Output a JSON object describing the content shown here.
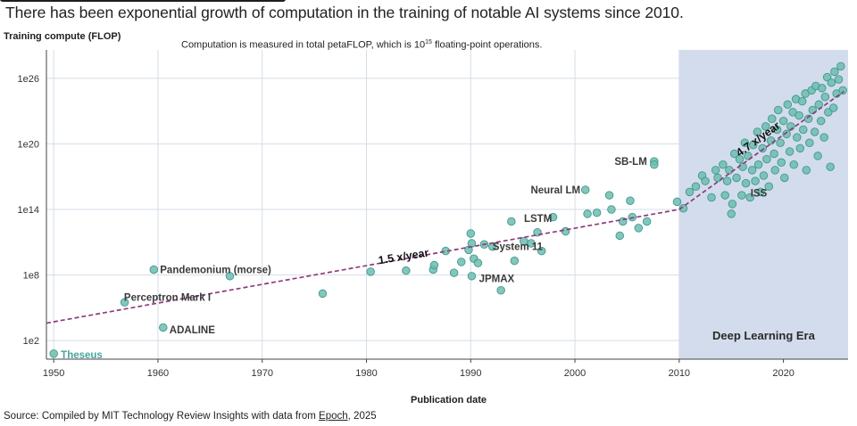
{
  "page": {
    "headline": "There has been exponential growth of computation in the training of notable AI systems since 2010.",
    "note_pre": "Computation is measured in total petaFLOP, which is 10",
    "note_sup": "15",
    "note_post": " floating-point operations.",
    "source_pre": "Source: Compiled by MIT Technology Review Insights with data from ",
    "source_link": "Epoch",
    "source_post": ", 2025"
  },
  "colors": {
    "point": "#6fbcb0",
    "point_edge": "#3f9a8e",
    "trend": "#8e3a7c",
    "era_band": "#d2dcec",
    "grid": "#d5dde8",
    "axis": "#444444"
  },
  "chart_data": {
    "type": "scatter",
    "title": "",
    "xlabel": "Publication date",
    "ylabel": "Training compute (FLOP)",
    "y_scale": "log10",
    "xlim": [
      1949.3,
      2026.2
    ],
    "ylim": [
      0.3,
      28.6
    ],
    "x_ticks": [
      1950,
      1960,
      1970,
      1980,
      1990,
      2000,
      2010,
      2020
    ],
    "y_ticks": [
      {
        "exp": 2,
        "label": "1e2"
      },
      {
        "exp": 8,
        "label": "1e8"
      },
      {
        "exp": 14,
        "label": "1e14"
      },
      {
        "exp": 20,
        "label": "1e20"
      },
      {
        "exp": 26,
        "label": "1e26"
      }
    ],
    "grid": true,
    "shaded_region": {
      "x_from": 2010,
      "label": "Deep Learning Era"
    },
    "trend_lines": [
      {
        "label": "1.5 x/year",
        "x": [
          1949.3,
          2010
        ],
        "log10_y": [
          3.6,
          14.0
        ]
      },
      {
        "label": "4.7 x/year",
        "x": [
          2010,
          2025.8
        ],
        "log10_y": [
          14.0,
          24.8
        ]
      }
    ],
    "annotations": [
      {
        "text": "Theseus",
        "x": 1950,
        "log10_y": 0.7
      },
      {
        "text": "Pandemonium (morse)",
        "x": 1959.6,
        "log10_y": 8.5
      },
      {
        "text": "Perceptron Mark I",
        "x": 1957.0,
        "log10_y": 5.4
      },
      {
        "text": "ADALINE",
        "x": 1960.5,
        "log10_y": 3.0
      },
      {
        "text": "1.5 x/year",
        "x": 1981.2,
        "log10_y": 9.0
      },
      {
        "text": "System 11",
        "x": 1991.5,
        "log10_y": 10.6
      },
      {
        "text": "JPMAX",
        "x": 1990.2,
        "log10_y": 7.7
      },
      {
        "text": "LSTM",
        "x": 1994.6,
        "log10_y": 13.2
      },
      {
        "text": "Neural LM",
        "x": 2001.2,
        "log10_y": 15.8
      },
      {
        "text": "SB-LM",
        "x": 2007.6,
        "log10_y": 18.4
      },
      {
        "text": "ISS",
        "x": 2016.5,
        "log10_y": 15.5
      },
      {
        "text": "4.7 x/year",
        "x": 2015.8,
        "log10_y": 18.8
      }
    ],
    "points": [
      {
        "x": 1950.0,
        "log10_y": 0.8
      },
      {
        "x": 1956.8,
        "log10_y": 5.5
      },
      {
        "x": 1959.6,
        "log10_y": 8.5
      },
      {
        "x": 1960.5,
        "log10_y": 3.2
      },
      {
        "x": 1966.9,
        "log10_y": 7.9
      },
      {
        "x": 1975.8,
        "log10_y": 6.3
      },
      {
        "x": 1980.4,
        "log10_y": 8.3
      },
      {
        "x": 1983.8,
        "log10_y": 8.4
      },
      {
        "x": 1986.4,
        "log10_y": 8.5
      },
      {
        "x": 1986.5,
        "log10_y": 8.9
      },
      {
        "x": 1987.6,
        "log10_y": 10.2
      },
      {
        "x": 1988.4,
        "log10_y": 8.2
      },
      {
        "x": 1989.1,
        "log10_y": 9.2
      },
      {
        "x": 1989.8,
        "log10_y": 10.3
      },
      {
        "x": 1990.0,
        "log10_y": 11.8
      },
      {
        "x": 1990.1,
        "log10_y": 10.9
      },
      {
        "x": 1990.1,
        "log10_y": 7.9
      },
      {
        "x": 1990.3,
        "log10_y": 9.5
      },
      {
        "x": 1990.7,
        "log10_y": 9.1
      },
      {
        "x": 1991.3,
        "log10_y": 10.8
      },
      {
        "x": 1992.1,
        "log10_y": 10.6
      },
      {
        "x": 1992.9,
        "log10_y": 6.6
      },
      {
        "x": 1993.9,
        "log10_y": 12.9
      },
      {
        "x": 1994.2,
        "log10_y": 9.3
      },
      {
        "x": 1995.1,
        "log10_y": 11.1
      },
      {
        "x": 1995.8,
        "log10_y": 10.9
      },
      {
        "x": 1996.4,
        "log10_y": 11.9
      },
      {
        "x": 1996.8,
        "log10_y": 10.2
      },
      {
        "x": 1997.9,
        "log10_y": 13.3
      },
      {
        "x": 1999.1,
        "log10_y": 12.0
      },
      {
        "x": 2001.0,
        "log10_y": 15.8
      },
      {
        "x": 2001.2,
        "log10_y": 13.6
      },
      {
        "x": 2002.1,
        "log10_y": 13.7
      },
      {
        "x": 2003.3,
        "log10_y": 15.3
      },
      {
        "x": 2003.5,
        "log10_y": 14.0
      },
      {
        "x": 2004.3,
        "log10_y": 11.6
      },
      {
        "x": 2004.6,
        "log10_y": 12.9
      },
      {
        "x": 2005.3,
        "log10_y": 14.8
      },
      {
        "x": 2005.5,
        "log10_y": 13.3
      },
      {
        "x": 2006.1,
        "log10_y": 12.3
      },
      {
        "x": 2006.9,
        "log10_y": 12.9
      },
      {
        "x": 2007.6,
        "log10_y": 18.4
      },
      {
        "x": 2007.6,
        "log10_y": 18.1
      },
      {
        "x": 2009.8,
        "log10_y": 14.7
      },
      {
        "x": 2010.4,
        "log10_y": 14.1
      },
      {
        "x": 2011.0,
        "log10_y": 15.6
      },
      {
        "x": 2011.6,
        "log10_y": 16.1
      },
      {
        "x": 2012.2,
        "log10_y": 17.1
      },
      {
        "x": 2012.5,
        "log10_y": 16.6
      },
      {
        "x": 2013.1,
        "log10_y": 15.1
      },
      {
        "x": 2013.5,
        "log10_y": 17.6
      },
      {
        "x": 2013.7,
        "log10_y": 16.9
      },
      {
        "x": 2014.2,
        "log10_y": 18.1
      },
      {
        "x": 2014.4,
        "log10_y": 15.3
      },
      {
        "x": 2014.6,
        "log10_y": 16.6
      },
      {
        "x": 2014.8,
        "log10_y": 17.6
      },
      {
        "x": 2015.0,
        "log10_y": 13.6
      },
      {
        "x": 2015.1,
        "log10_y": 14.5
      },
      {
        "x": 2015.3,
        "log10_y": 19.1
      },
      {
        "x": 2015.5,
        "log10_y": 16.9
      },
      {
        "x": 2015.8,
        "log10_y": 18.6
      },
      {
        "x": 2016.0,
        "log10_y": 15.3
      },
      {
        "x": 2016.1,
        "log10_y": 17.9
      },
      {
        "x": 2016.3,
        "log10_y": 20.1
      },
      {
        "x": 2016.4,
        "log10_y": 16.4
      },
      {
        "x": 2016.6,
        "log10_y": 18.9
      },
      {
        "x": 2016.8,
        "log10_y": 15.1
      },
      {
        "x": 2017.0,
        "log10_y": 17.6
      },
      {
        "x": 2017.1,
        "log10_y": 19.9
      },
      {
        "x": 2017.3,
        "log10_y": 16.6
      },
      {
        "x": 2017.5,
        "log10_y": 21.1
      },
      {
        "x": 2017.6,
        "log10_y": 18.1
      },
      {
        "x": 2017.8,
        "log10_y": 15.6
      },
      {
        "x": 2018.0,
        "log10_y": 19.6
      },
      {
        "x": 2018.1,
        "log10_y": 17.1
      },
      {
        "x": 2018.3,
        "log10_y": 21.6
      },
      {
        "x": 2018.4,
        "log10_y": 18.6
      },
      {
        "x": 2018.6,
        "log10_y": 16.1
      },
      {
        "x": 2018.8,
        "log10_y": 20.3
      },
      {
        "x": 2018.9,
        "log10_y": 22.3
      },
      {
        "x": 2019.1,
        "log10_y": 19.1
      },
      {
        "x": 2019.2,
        "log10_y": 17.6
      },
      {
        "x": 2019.4,
        "log10_y": 21.3
      },
      {
        "x": 2019.5,
        "log10_y": 23.1
      },
      {
        "x": 2019.7,
        "log10_y": 20.1
      },
      {
        "x": 2019.8,
        "log10_y": 18.3
      },
      {
        "x": 2020.0,
        "log10_y": 22.1
      },
      {
        "x": 2020.1,
        "log10_y": 16.9
      },
      {
        "x": 2020.3,
        "log10_y": 20.9
      },
      {
        "x": 2020.4,
        "log10_y": 23.6
      },
      {
        "x": 2020.6,
        "log10_y": 19.3
      },
      {
        "x": 2020.7,
        "log10_y": 21.6
      },
      {
        "x": 2020.9,
        "log10_y": 22.9
      },
      {
        "x": 2021.0,
        "log10_y": 18.1
      },
      {
        "x": 2021.2,
        "log10_y": 24.1
      },
      {
        "x": 2021.3,
        "log10_y": 20.6
      },
      {
        "x": 2021.5,
        "log10_y": 22.6
      },
      {
        "x": 2021.6,
        "log10_y": 19.6
      },
      {
        "x": 2021.8,
        "log10_y": 23.9
      },
      {
        "x": 2021.9,
        "log10_y": 21.3
      },
      {
        "x": 2022.1,
        "log10_y": 24.6
      },
      {
        "x": 2022.2,
        "log10_y": 17.6
      },
      {
        "x": 2022.4,
        "log10_y": 22.3
      },
      {
        "x": 2022.5,
        "log10_y": 20.1
      },
      {
        "x": 2022.7,
        "log10_y": 24.9
      },
      {
        "x": 2022.8,
        "log10_y": 23.1
      },
      {
        "x": 2023.0,
        "log10_y": 21.1
      },
      {
        "x": 2023.1,
        "log10_y": 25.3
      },
      {
        "x": 2023.3,
        "log10_y": 18.9
      },
      {
        "x": 2023.4,
        "log10_y": 23.6
      },
      {
        "x": 2023.6,
        "log10_y": 22.1
      },
      {
        "x": 2023.7,
        "log10_y": 25.1
      },
      {
        "x": 2023.9,
        "log10_y": 20.6
      },
      {
        "x": 2024.0,
        "log10_y": 24.3
      },
      {
        "x": 2024.2,
        "log10_y": 26.1
      },
      {
        "x": 2024.3,
        "log10_y": 22.9
      },
      {
        "x": 2024.5,
        "log10_y": 17.9
      },
      {
        "x": 2024.6,
        "log10_y": 25.6
      },
      {
        "x": 2024.8,
        "log10_y": 23.3
      },
      {
        "x": 2024.9,
        "log10_y": 26.6
      },
      {
        "x": 2025.1,
        "log10_y": 24.6
      },
      {
        "x": 2025.3,
        "log10_y": 25.9
      },
      {
        "x": 2025.5,
        "log10_y": 27.1
      },
      {
        "x": 2025.7,
        "log10_y": 24.9
      }
    ]
  }
}
